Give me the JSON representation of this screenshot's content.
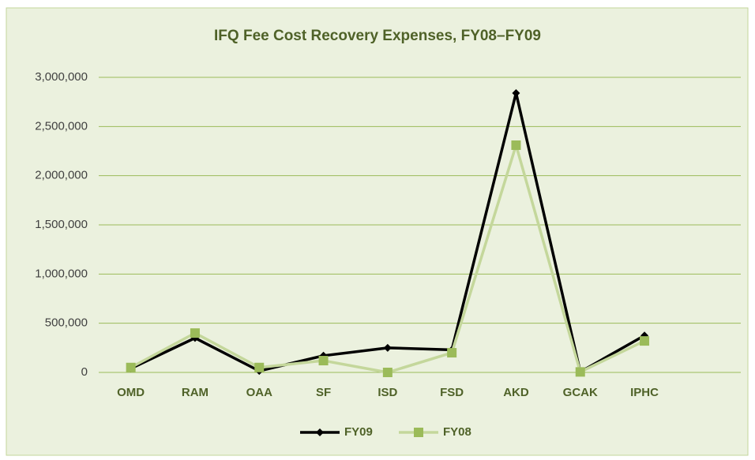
{
  "chart_data": {
    "type": "line",
    "title": "IFQ Fee Cost Recovery Expenses, FY08–FY09",
    "categories": [
      "OMD",
      "RAM",
      "OAA",
      "SF",
      "ISD",
      "FSD",
      "AKD",
      "GCAK",
      "IPHC",
      null
    ],
    "series": [
      {
        "name": "FY09",
        "color": "#000000",
        "marker": "diamond",
        "values": [
          40000,
          350000,
          15000,
          170000,
          250000,
          230000,
          2840000,
          5000,
          375000,
          null
        ]
      },
      {
        "name": "FY08",
        "color": "#c4d79b",
        "marker_color": "#9bbb59",
        "marker": "square",
        "values": [
          50000,
          400000,
          50000,
          120000,
          0,
          200000,
          2310000,
          5000,
          320000,
          null
        ]
      }
    ],
    "ylim": [
      0,
      3000000
    ],
    "yticks": [
      0,
      {
        "value": 500000,
        "label": "500,000"
      },
      {
        "value": 1000000,
        "label": "1,000,000"
      },
      {
        "value": 1500000,
        "label": "1,500,000"
      },
      {
        "value": 2000000,
        "label": "2,000,000"
      },
      {
        "value": 2500000,
        "label": "2,500,000"
      },
      {
        "value": 3000000,
        "label": "3,000,000"
      }
    ],
    "grid": true,
    "legend": "bottom"
  }
}
